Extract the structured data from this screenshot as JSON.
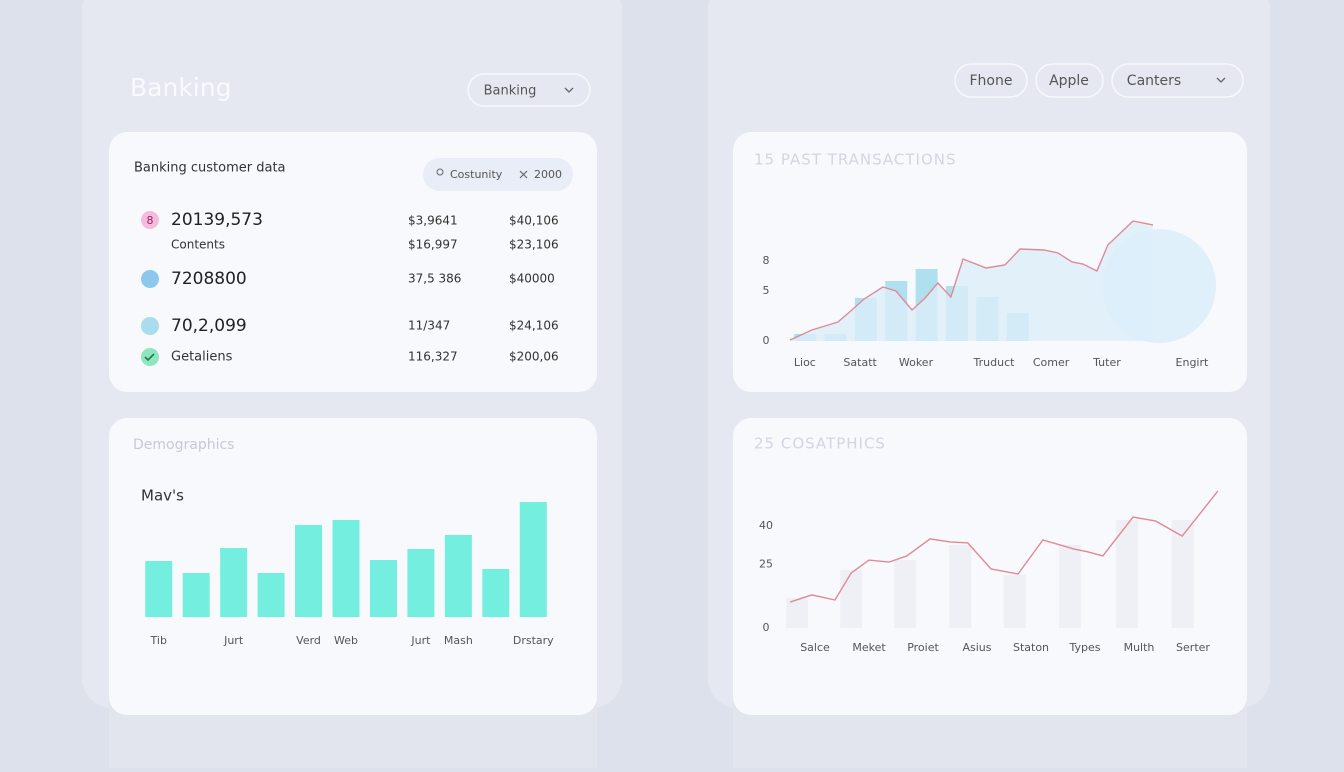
{
  "header": {
    "title": "Banking",
    "dropdown": "Banking",
    "filters": [
      "Fhone",
      "Apple",
      "Canters"
    ]
  },
  "customer_card": {
    "title": "Banking customer data",
    "chip": {
      "label": "Costunity",
      "value": "2000"
    },
    "badge": "8",
    "rows": [
      [
        "20139,573",
        "$3,9641",
        "$40,106"
      ],
      [
        "Contents",
        "$16,997",
        "$23,106"
      ],
      [
        "7208800",
        "37,5 386",
        "$40000"
      ],
      [
        "70,2,099",
        "11/347",
        "$24,106"
      ],
      [
        "Getaliens",
        "116,327",
        "$200,06"
      ]
    ]
  },
  "chart_data": [
    {
      "type": "combo",
      "title": "15 PAST TRANSACTIONS",
      "xlim": [
        0,
        14
      ],
      "xticks": [
        {
          "value": 0.49,
          "label": "Lioc"
        },
        {
          "value": 2.31,
          "label": "Satatt"
        },
        {
          "value": 4.15,
          "label": "Woker"
        },
        {
          "value": 6.72,
          "label": "Truduct"
        },
        {
          "value": 8.6,
          "label": "Comer"
        },
        {
          "value": 10.44,
          "label": "Tuter"
        },
        {
          "value": 13.24,
          "label": "Engirt"
        }
      ],
      "ylim": [
        0,
        12
      ],
      "yticks": [
        0,
        5,
        8
      ],
      "series": [
        {
          "type": "bar",
          "color": "#aee0f0",
          "x": [
            0.5,
            1.5,
            2.5,
            3.5,
            4.5,
            5.5,
            6.5,
            7.5
          ],
          "values": [
            0.7,
            0.7,
            4.3,
            6,
            7.2,
            5.5,
            4.4,
            2.8
          ]
        },
        {
          "type": "line",
          "color": "#e08a96",
          "area_color": "#dcedf9",
          "x": [
            0,
            0.72,
            1.58,
            2.0,
            2.44,
            3.06,
            3.49,
            4.02,
            4.45,
            4.87,
            5.3,
            5.7,
            6.46,
            7.08,
            7.58,
            8.37,
            8.83,
            9.29,
            9.65,
            10.11,
            10.47,
            11.3,
            11.96
          ],
          "values": [
            0.1,
            1.1,
            1.9,
            3.0,
            4.2,
            5.4,
            5,
            3.1,
            4.3,
            5.8,
            4.4,
            8.2,
            7.3,
            7.6,
            9.2,
            9.1,
            8.8,
            7.9,
            7.7,
            7,
            9.6,
            12,
            11.6
          ]
        }
      ]
    },
    {
      "type": "bar",
      "title": "Demographics",
      "subtitle": "Mav's",
      "color": "#74eedf",
      "categories": [
        "Tib",
        null,
        "Jurt",
        null,
        "Verd",
        "Web",
        null,
        "Jurt",
        "Mash",
        null,
        "Drstary"
      ],
      "values": [
        56,
        44,
        69,
        44,
        92,
        97,
        57,
        68,
        82,
        48,
        115
      ]
    },
    {
      "type": "combo",
      "title": "25 COSATPHICS",
      "xlim": [
        0,
        8
      ],
      "xticks": [
        {
          "value": 0.5,
          "label": "Salce"
        },
        {
          "value": 1.5,
          "label": "Meket"
        },
        {
          "value": 2.5,
          "label": "Proiet"
        },
        {
          "value": 3.5,
          "label": "Asius"
        },
        {
          "value": 4.5,
          "label": "Staton"
        },
        {
          "value": 5.5,
          "label": "Types"
        },
        {
          "value": 6.5,
          "label": "Multh"
        },
        {
          "value": 7.5,
          "label": "Serter"
        }
      ],
      "ylim": [
        0,
        55
      ],
      "yticks": [
        0,
        25,
        40
      ],
      "series": [
        {
          "type": "bar",
          "color": "#eef0f5",
          "x": [
            0.17,
            1.17,
            2.17,
            3.19,
            4.2,
            5.22,
            6.28,
            7.31
          ],
          "values": [
            11.8,
            22.8,
            26.7,
            32.6,
            20.8,
            32.6,
            42.4,
            42.4
          ]
        },
        {
          "type": "line",
          "color": "#e08a96",
          "x": [
            0.04,
            0.44,
            0.87,
            1.17,
            1.5,
            1.87,
            2.2,
            2.63,
            3,
            3.33,
            3.76,
            4.26,
            4.72,
            5.3,
            5.56,
            5.83,
            6.39,
            6.81,
            7.3,
            7.96
          ],
          "values": [
            10.2,
            13,
            11,
            21.6,
            26.7,
            25.9,
            28.3,
            35,
            33.8,
            33.4,
            23.2,
            21.2,
            34.6,
            31,
            29.9,
            28.3,
            43.6,
            42,
            36.1,
            53.8
          ]
        }
      ]
    }
  ]
}
